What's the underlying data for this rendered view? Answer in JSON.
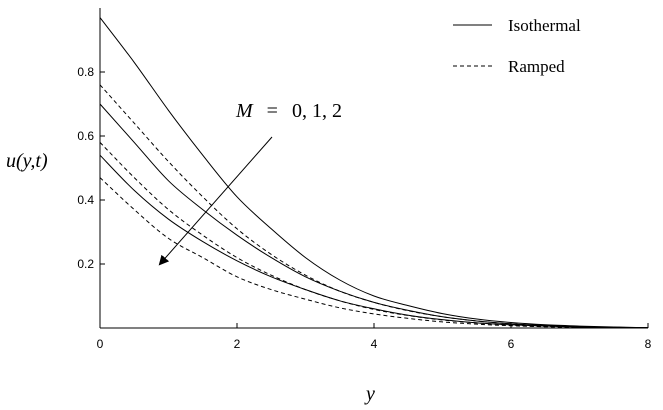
{
  "chart_data": {
    "type": "line",
    "xlabel": "y",
    "ylabel": "u(y,t)",
    "xlim": [
      0,
      8
    ],
    "ylim": [
      0,
      1
    ],
    "x_ticks": [
      "0",
      "2",
      "4",
      "6",
      "8"
    ],
    "y_ticks": [
      "0.2",
      "0.4",
      "0.6",
      "0.8"
    ],
    "grid": false,
    "legend_position": "top-right",
    "legend": [
      {
        "label": "Isothermal",
        "style": "solid"
      },
      {
        "label": "Ramped",
        "style": "dashed"
      }
    ],
    "annotation": {
      "prefix": "M",
      "equals": "=",
      "values": "0, 1, 2"
    },
    "x": [
      0,
      0.5,
      1,
      1.5,
      2,
      2.5,
      3,
      3.5,
      4,
      4.5,
      5,
      5.5,
      6,
      6.5,
      7,
      7.5,
      8
    ],
    "series": [
      {
        "style": "solid",
        "values": [
          0.97,
          0.83,
          0.68,
          0.54,
          0.41,
          0.31,
          0.22,
          0.15,
          0.1,
          0.07,
          0.045,
          0.028,
          0.017,
          0.01,
          0.006,
          0.003,
          0.001
        ]
      },
      {
        "style": "solid",
        "values": [
          0.7,
          0.58,
          0.46,
          0.37,
          0.29,
          0.22,
          0.16,
          0.115,
          0.08,
          0.055,
          0.035,
          0.022,
          0.013,
          0.008,
          0.004,
          0.002,
          0.001
        ]
      },
      {
        "style": "solid",
        "values": [
          0.54,
          0.43,
          0.34,
          0.27,
          0.21,
          0.16,
          0.12,
          0.085,
          0.06,
          0.04,
          0.026,
          0.016,
          0.01,
          0.006,
          0.003,
          0.002,
          0.001
        ]
      },
      {
        "style": "dashed",
        "values": [
          0.76,
          0.64,
          0.52,
          0.41,
          0.31,
          0.23,
          0.165,
          0.115,
          0.08,
          0.054,
          0.035,
          0.022,
          0.013,
          0.008,
          0.004,
          0.002,
          0.001
        ]
      },
      {
        "style": "dashed",
        "values": [
          0.58,
          0.47,
          0.37,
          0.29,
          0.22,
          0.165,
          0.12,
          0.085,
          0.058,
          0.039,
          0.025,
          0.016,
          0.009,
          0.005,
          0.003,
          0.001,
          0.0005
        ]
      },
      {
        "style": "dashed",
        "values": [
          0.47,
          0.37,
          0.28,
          0.22,
          0.16,
          0.12,
          0.09,
          0.063,
          0.044,
          0.03,
          0.019,
          0.012,
          0.007,
          0.004,
          0.002,
          0.001,
          0.0005
        ]
      }
    ]
  }
}
